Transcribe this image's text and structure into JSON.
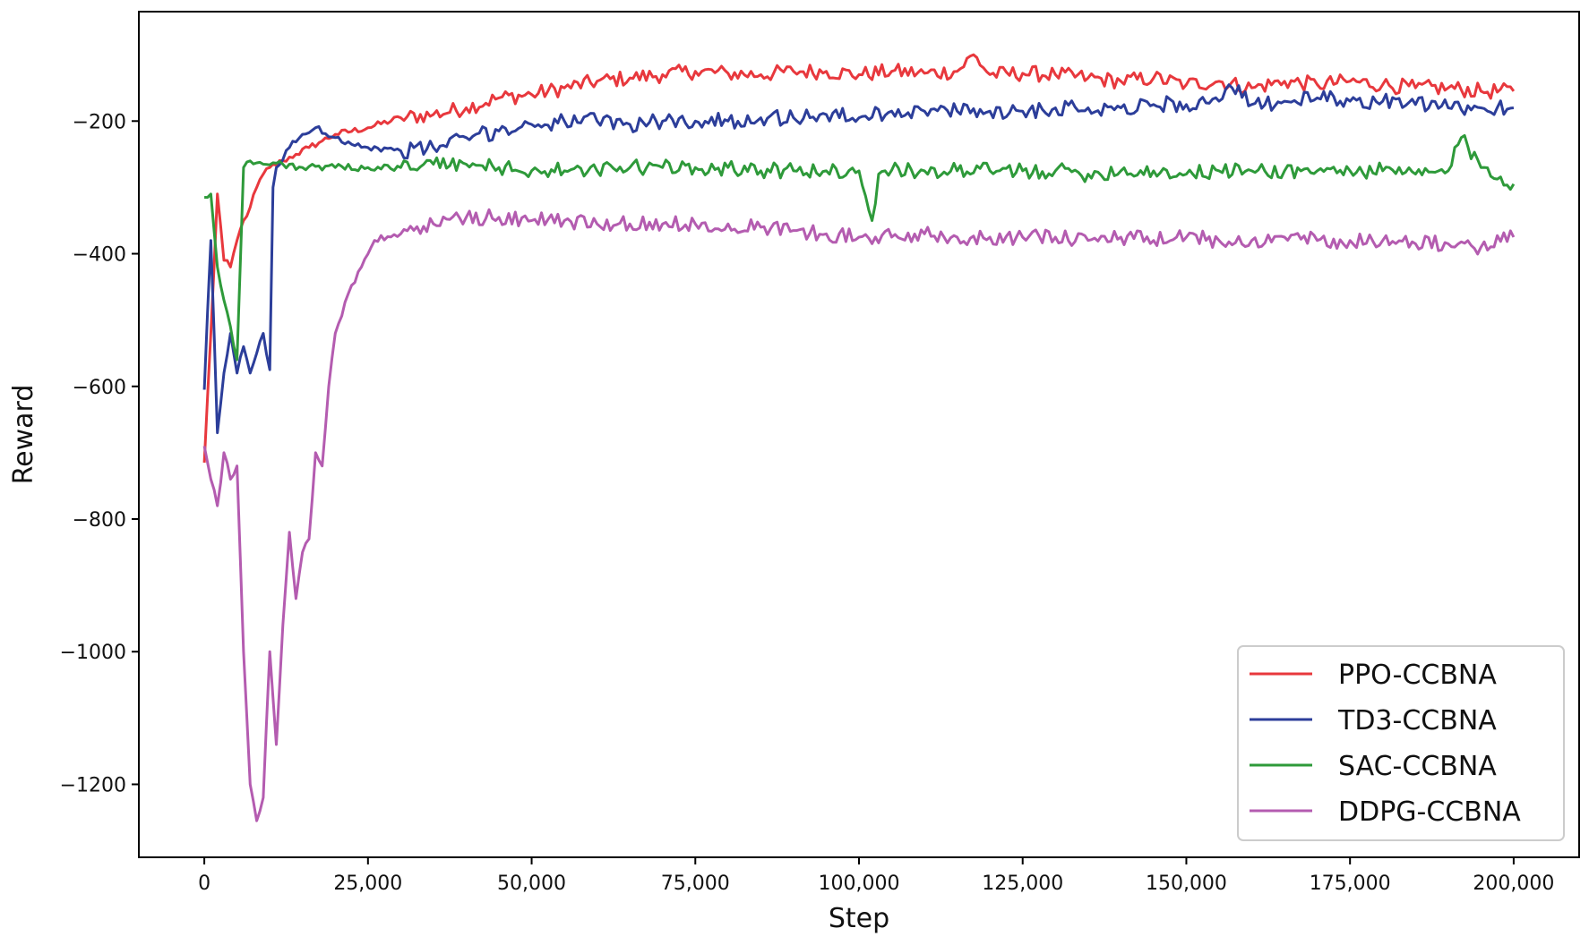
{
  "chart_data": {
    "type": "line",
    "title": "",
    "xlabel": "Step",
    "ylabel": "Reward",
    "xlim": [
      -10000,
      210000
    ],
    "ylim": [
      -1310,
      -35
    ],
    "xticks": [
      0,
      25000,
      50000,
      75000,
      100000,
      125000,
      150000,
      175000,
      200000
    ],
    "xtick_labels": [
      "0",
      "25,000",
      "50,000",
      "75,000",
      "100,000",
      "125,000",
      "150,000",
      "175,000",
      "200,000"
    ],
    "yticks": [
      -1200,
      -1000,
      -800,
      -600,
      -400,
      -200
    ],
    "ytick_labels": [
      "−1200",
      "−1000",
      "−800",
      "−600",
      "−400",
      "−200"
    ],
    "grid": false,
    "legend_position": "bottom-right",
    "series": [
      {
        "name": "PPO-CCBNA",
        "color": "#e8383d",
        "x": [
          0,
          1000,
          2000,
          3000,
          4000,
          5000,
          6000,
          7000,
          8000,
          9000,
          10000,
          12000,
          14000,
          16000,
          18000,
          20000,
          25000,
          30000,
          35000,
          40000,
          45000,
          50000,
          55000,
          60000,
          65000,
          70000,
          75000,
          80000,
          85000,
          90000,
          95000,
          100000,
          105000,
          110000,
          115000,
          117500,
          120000,
          125000,
          130000,
          135000,
          140000,
          145000,
          150000,
          155000,
          160000,
          165000,
          170000,
          175000,
          180000,
          185000,
          190000,
          195000,
          200000
        ],
        "y": [
          -715,
          -520,
          -310,
          -410,
          -420,
          -380,
          -350,
          -330,
          -300,
          -280,
          -270,
          -260,
          -250,
          -240,
          -230,
          -220,
          -210,
          -195,
          -190,
          -180,
          -165,
          -160,
          -150,
          -140,
          -135,
          -130,
          -125,
          -128,
          -130,
          -125,
          -125,
          -130,
          -125,
          -128,
          -125,
          -100,
          -130,
          -128,
          -130,
          -135,
          -140,
          -135,
          -145,
          -140,
          -150,
          -140,
          -145,
          -140,
          -145,
          -150,
          -150,
          -155,
          -155
        ]
      },
      {
        "name": "TD3-CCBNA",
        "color": "#2c3e9a",
        "x": [
          0,
          1000,
          2000,
          3000,
          4000,
          5000,
          6000,
          7000,
          8000,
          9000,
          10000,
          10500,
          11000,
          13000,
          15000,
          17000,
          20000,
          25000,
          30000,
          35000,
          40000,
          45000,
          50000,
          55000,
          60000,
          65000,
          70000,
          75000,
          80000,
          85000,
          90000,
          95000,
          100000,
          105000,
          110000,
          115000,
          120000,
          125000,
          130000,
          135000,
          140000,
          145000,
          150000,
          155000,
          157000,
          160000,
          165000,
          170000,
          175000,
          180000,
          185000,
          190000,
          195000,
          200000
        ],
        "y": [
          -605,
          -380,
          -670,
          -580,
          -520,
          -580,
          -540,
          -580,
          -550,
          -520,
          -575,
          -300,
          -270,
          -240,
          -220,
          -210,
          -225,
          -240,
          -245,
          -240,
          -225,
          -215,
          -205,
          -200,
          -200,
          -205,
          -200,
          -200,
          -200,
          -195,
          -195,
          -190,
          -195,
          -185,
          -185,
          -185,
          -185,
          -185,
          -180,
          -180,
          -180,
          -175,
          -175,
          -170,
          -150,
          -175,
          -170,
          -165,
          -170,
          -170,
          -175,
          -180,
          -180,
          -180
        ]
      },
      {
        "name": "SAC-CCBNA",
        "color": "#2e9a3a",
        "x": [
          0,
          1000,
          2000,
          3000,
          4000,
          5000,
          6000,
          7000,
          9000,
          12000,
          15000,
          20000,
          25000,
          30000,
          35000,
          40000,
          45000,
          50000,
          55000,
          60000,
          65000,
          70000,
          75000,
          80000,
          85000,
          90000,
          95000,
          100000,
          102000,
          103000,
          104000,
          110000,
          115000,
          120000,
          125000,
          130000,
          135000,
          140000,
          145000,
          150000,
          155000,
          160000,
          165000,
          170000,
          175000,
          180000,
          185000,
          190000,
          192000,
          195000,
          200000
        ],
        "y": [
          -315,
          -310,
          -420,
          -470,
          -510,
          -560,
          -270,
          -260,
          -265,
          -265,
          -270,
          -270,
          -270,
          -270,
          -265,
          -265,
          -270,
          -275,
          -275,
          -275,
          -270,
          -270,
          -270,
          -270,
          -275,
          -275,
          -275,
          -275,
          -350,
          -280,
          -275,
          -275,
          -275,
          -275,
          -275,
          -275,
          -280,
          -275,
          -275,
          -280,
          -275,
          -275,
          -275,
          -275,
          -275,
          -275,
          -280,
          -275,
          -225,
          -270,
          -295
        ]
      },
      {
        "name": "DDPG-CCBNA",
        "color": "#b45cb0",
        "x": [
          0,
          1000,
          2000,
          3000,
          4000,
          5000,
          6000,
          7000,
          8000,
          9000,
          10000,
          11000,
          12000,
          13000,
          14000,
          15000,
          16000,
          17000,
          18000,
          19000,
          20000,
          22000,
          24000,
          26000,
          30000,
          35000,
          40000,
          45000,
          50000,
          55000,
          60000,
          65000,
          70000,
          75000,
          80000,
          85000,
          90000,
          95000,
          100000,
          105000,
          110000,
          115000,
          120000,
          125000,
          130000,
          135000,
          140000,
          145000,
          150000,
          155000,
          160000,
          165000,
          170000,
          175000,
          180000,
          185000,
          190000,
          195000,
          200000
        ],
        "y": [
          -690,
          -740,
          -780,
          -700,
          -740,
          -720,
          -1000,
          -1200,
          -1255,
          -1220,
          -1000,
          -1140,
          -960,
          -820,
          -920,
          -850,
          -830,
          -700,
          -720,
          -600,
          -520,
          -460,
          -420,
          -380,
          -370,
          -355,
          -345,
          -345,
          -350,
          -350,
          -355,
          -355,
          -355,
          -355,
          -355,
          -360,
          -365,
          -370,
          -375,
          -375,
          -370,
          -375,
          -375,
          -375,
          -375,
          -380,
          -375,
          -380,
          -375,
          -380,
          -380,
          -375,
          -380,
          -380,
          -380,
          -385,
          -385,
          -390,
          -375
        ]
      }
    ]
  }
}
